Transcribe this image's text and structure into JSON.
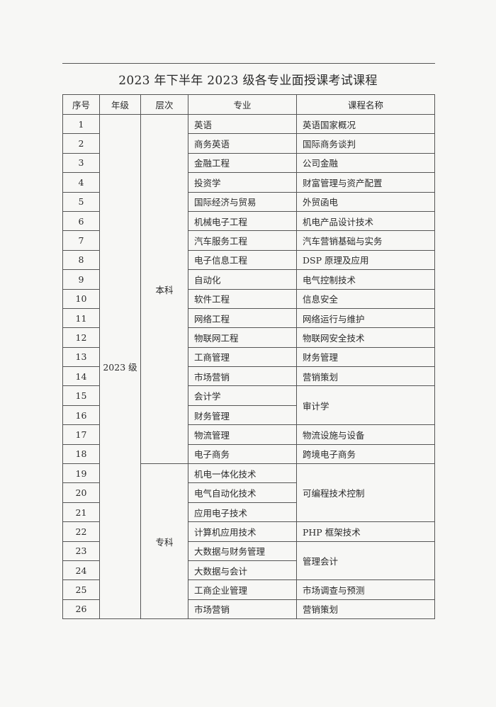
{
  "title": "2023 年下半年 2023 级各专业面授课考试课程",
  "headers": [
    "序号",
    "年级",
    "层次",
    "专业",
    "课程名称"
  ],
  "grade": "2023 级",
  "levels": [
    {
      "label": "本科",
      "rows": 18
    },
    {
      "label": "专科",
      "rows": 8
    }
  ],
  "rows": [
    {
      "no": "1",
      "major": "英语",
      "course": "英语国家概况",
      "span": 1
    },
    {
      "no": "2",
      "major": "商务英语",
      "course": "国际商务谈判",
      "span": 1
    },
    {
      "no": "3",
      "major": "金融工程",
      "course": "公司金融",
      "span": 1
    },
    {
      "no": "4",
      "major": "投资学",
      "course": "财富管理与资产配置",
      "span": 1
    },
    {
      "no": "5",
      "major": "国际经济与贸易",
      "course": "外贸函电",
      "span": 1
    },
    {
      "no": "6",
      "major": "机械电子工程",
      "course": "机电产品设计技术",
      "span": 1
    },
    {
      "no": "7",
      "major": "汽车服务工程",
      "course": "汽车营销基础与实务",
      "span": 1
    },
    {
      "no": "8",
      "major": "电子信息工程",
      "course": "DSP 原理及应用",
      "span": 1
    },
    {
      "no": "9",
      "major": "自动化",
      "course": "电气控制技术",
      "span": 1
    },
    {
      "no": "10",
      "major": "软件工程",
      "course": "信息安全",
      "span": 1
    },
    {
      "no": "11",
      "major": "网络工程",
      "course": "网络运行与维护",
      "span": 1
    },
    {
      "no": "12",
      "major": "物联网工程",
      "course": "物联网安全技术",
      "span": 1
    },
    {
      "no": "13",
      "major": "工商管理",
      "course": "财务管理",
      "span": 1
    },
    {
      "no": "14",
      "major": "市场营销",
      "course": "营销策划",
      "span": 1
    },
    {
      "no": "15",
      "major": "会计学",
      "course": "审计学",
      "span": 2
    },
    {
      "no": "16",
      "major": "财务管理",
      "course": null,
      "span": 0
    },
    {
      "no": "17",
      "major": "物流管理",
      "course": "物流设施与设备",
      "span": 1
    },
    {
      "no": "18",
      "major": "电子商务",
      "course": "跨境电子商务",
      "span": 1
    },
    {
      "no": "19",
      "major": "机电一体化技术",
      "course": "可编程技术控制",
      "span": 3
    },
    {
      "no": "20",
      "major": "电气自动化技术",
      "course": null,
      "span": 0
    },
    {
      "no": "21",
      "major": "应用电子技术",
      "course": null,
      "span": 0
    },
    {
      "no": "22",
      "major": "计算机应用技术",
      "course": "PHP 框架技术",
      "span": 1
    },
    {
      "no": "23",
      "major": "大数据与财务管理",
      "course": "管理会计",
      "span": 2
    },
    {
      "no": "24",
      "major": "大数据与会计",
      "course": null,
      "span": 0
    },
    {
      "no": "25",
      "major": "工商企业管理",
      "course": "市场调查与预测",
      "span": 1
    },
    {
      "no": "26",
      "major": "市场营销",
      "course": "营销策划",
      "span": 1
    }
  ]
}
